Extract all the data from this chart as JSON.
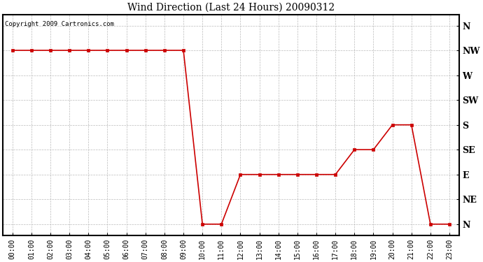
{
  "title": "Wind Direction (Last 24 Hours) 20090312",
  "copyright": "Copyright 2009 Cartronics.com",
  "background_color": "#ffffff",
  "plot_bg_color": "#ffffff",
  "line_color": "#cc0000",
  "marker": "s",
  "marker_size": 3,
  "grid_color": "#bbbbbb",
  "hours": [
    0,
    1,
    2,
    3,
    4,
    5,
    6,
    7,
    8,
    9,
    10,
    11,
    12,
    13,
    14,
    15,
    16,
    17,
    18,
    19,
    20,
    21,
    22,
    23
  ],
  "hour_labels": [
    "00:00",
    "01:00",
    "02:00",
    "03:00",
    "04:00",
    "05:00",
    "06:00",
    "07:00",
    "08:00",
    "09:00",
    "10:00",
    "11:00",
    "12:00",
    "13:00",
    "14:00",
    "15:00",
    "16:00",
    "17:00",
    "18:00",
    "19:00",
    "20:00",
    "21:00",
    "22:00",
    "23:00"
  ],
  "values": [
    315,
    315,
    315,
    315,
    315,
    315,
    315,
    315,
    315,
    315,
    0,
    0,
    90,
    90,
    90,
    90,
    90,
    90,
    135,
    135,
    180,
    180,
    0,
    0
  ],
  "yticks": [
    360,
    315,
    270,
    225,
    180,
    135,
    90,
    45,
    0
  ],
  "ylabels": [
    "N",
    "NW",
    "W",
    "SW",
    "S",
    "SE",
    "E",
    "NE",
    "N"
  ],
  "ylim": [
    -20,
    380
  ]
}
